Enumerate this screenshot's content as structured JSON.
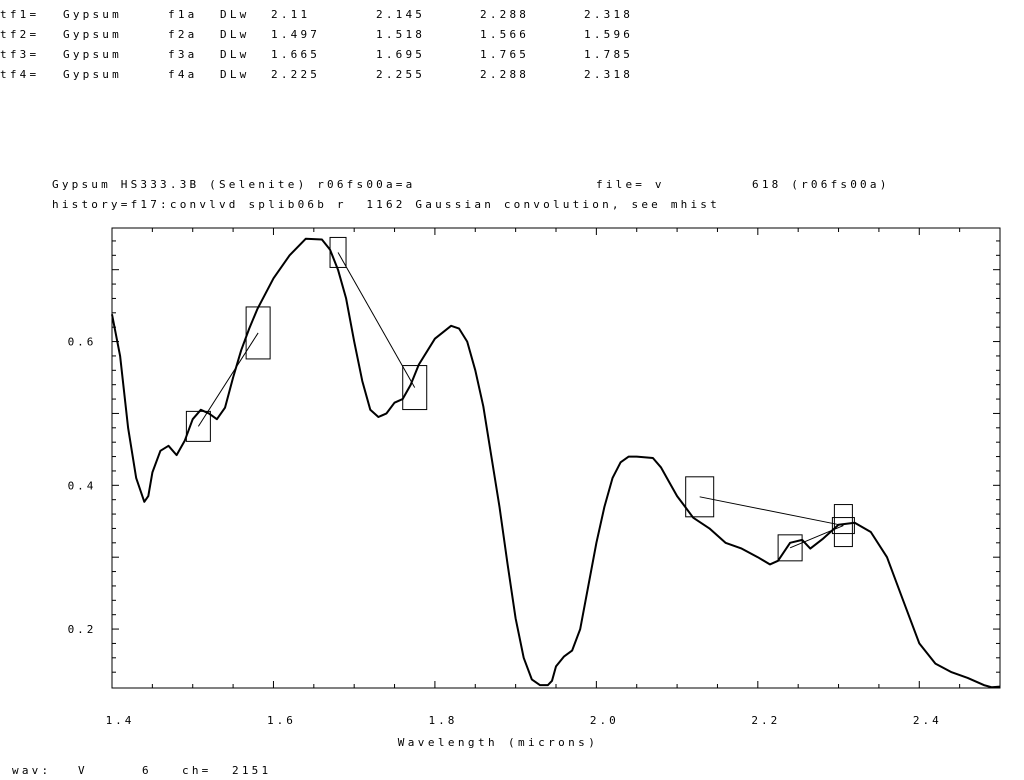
{
  "feature_table": [
    {
      "id": "tf1=",
      "material": "Gypsum",
      "feature": "f1a",
      "type": "DLw",
      "v1": "2.11",
      "v2": "2.145",
      "v3": "2.288",
      "v4": "2.318"
    },
    {
      "id": "tf2=",
      "material": "Gypsum",
      "feature": "f2a",
      "type": "DLw",
      "v1": "1.497",
      "v2": "1.518",
      "v3": "1.566",
      "v4": "1.596"
    },
    {
      "id": "tf3=",
      "material": "Gypsum",
      "feature": "f3a",
      "type": "DLw",
      "v1": "1.665",
      "v2": "1.695",
      "v3": "1.765",
      "v4": "1.785"
    },
    {
      "id": "tf4=",
      "material": "Gypsum",
      "feature": "f4a",
      "type": "DLw",
      "v1": "2.225",
      "v2": "2.255",
      "v3": "2.288",
      "v4": "2.318"
    }
  ],
  "header": {
    "line1a": "Gypsum HS333.3B (Selenite) r06fs00a=a",
    "line1b": "file= v",
    "line1c": "618 (r06fs00a)",
    "line2": "history=f17:convlvd splib06b r  1162 Gaussian convolution, see mhist"
  },
  "footer": {
    "wav_label": "wav:",
    "wav_value": "V",
    "wav_num": "6",
    "ch_label": "ch=",
    "ch_value": "2151"
  },
  "chart_data": {
    "type": "line",
    "title": "",
    "xlabel": "Wavelength (microns)",
    "ylabel": "",
    "xlim": [
      1.4,
      2.5
    ],
    "ylim": [
      0.118,
      0.758
    ],
    "xticks": [
      1.4,
      1.6,
      1.8,
      2.0,
      2.2,
      2.4
    ],
    "xtick_labels": [
      "1.4",
      "1.6",
      "1.8",
      "2.0",
      "2.2",
      "2.4"
    ],
    "yticks": [
      0.2,
      0.4,
      0.6
    ],
    "ytick_labels": [
      "0.2",
      "0.4",
      "0.6"
    ],
    "series": [
      {
        "x": [
          1.4,
          1.41,
          1.42,
          1.43,
          1.44,
          1.445,
          1.45,
          1.46,
          1.47,
          1.48,
          1.49,
          1.5,
          1.51,
          1.52,
          1.53,
          1.54,
          1.55,
          1.56,
          1.57,
          1.58,
          1.6,
          1.62,
          1.64,
          1.66,
          1.67,
          1.68,
          1.69,
          1.7,
          1.71,
          1.72,
          1.73,
          1.74,
          1.75,
          1.76,
          1.77,
          1.78,
          1.8,
          1.82,
          1.83,
          1.84,
          1.85,
          1.86,
          1.87,
          1.88,
          1.89,
          1.9,
          1.91,
          1.92,
          1.93,
          1.94,
          1.945,
          1.95,
          1.96,
          1.97,
          1.98,
          1.99,
          2.0,
          2.01,
          2.02,
          2.03,
          2.04,
          2.05,
          2.07,
          2.08,
          2.09,
          2.1,
          2.11,
          2.12,
          2.14,
          2.16,
          2.18,
          2.2,
          2.215,
          2.225,
          2.24,
          2.255,
          2.265,
          2.28,
          2.3,
          2.32,
          2.34,
          2.36,
          2.38,
          2.4,
          2.42,
          2.44,
          2.46,
          2.48,
          2.49,
          2.5
        ],
        "y": [
          0.638,
          0.58,
          0.48,
          0.41,
          0.377,
          0.385,
          0.418,
          0.448,
          0.455,
          0.442,
          0.462,
          0.492,
          0.505,
          0.5,
          0.492,
          0.508,
          0.55,
          0.588,
          0.618,
          0.645,
          0.688,
          0.72,
          0.743,
          0.742,
          0.728,
          0.7,
          0.66,
          0.6,
          0.545,
          0.505,
          0.495,
          0.5,
          0.515,
          0.52,
          0.54,
          0.568,
          0.604,
          0.622,
          0.618,
          0.6,
          0.56,
          0.51,
          0.44,
          0.37,
          0.29,
          0.215,
          0.16,
          0.13,
          0.122,
          0.122,
          0.128,
          0.148,
          0.162,
          0.17,
          0.2,
          0.26,
          0.32,
          0.37,
          0.41,
          0.432,
          0.44,
          0.44,
          0.438,
          0.425,
          0.405,
          0.385,
          0.37,
          0.355,
          0.34,
          0.32,
          0.312,
          0.3,
          0.29,
          0.295,
          0.32,
          0.324,
          0.312,
          0.325,
          0.345,
          0.348,
          0.335,
          0.3,
          0.24,
          0.18,
          0.152,
          0.14,
          0.132,
          0.122,
          0.119,
          0.12
        ]
      }
    ],
    "features": [
      {
        "box_centers": [
          [
            2.128,
            0.384
          ],
          [
            2.306,
            0.344
          ]
        ]
      },
      {
        "box_centers": [
          [
            1.507,
            0.482
          ],
          [
            1.581,
            0.612
          ]
        ]
      },
      {
        "box_centers": [
          [
            1.68,
            0.724
          ],
          [
            1.775,
            0.536
          ]
        ]
      },
      {
        "box_centers": [
          [
            2.24,
            0.313
          ],
          [
            2.306,
            0.344
          ]
        ]
      }
    ]
  }
}
